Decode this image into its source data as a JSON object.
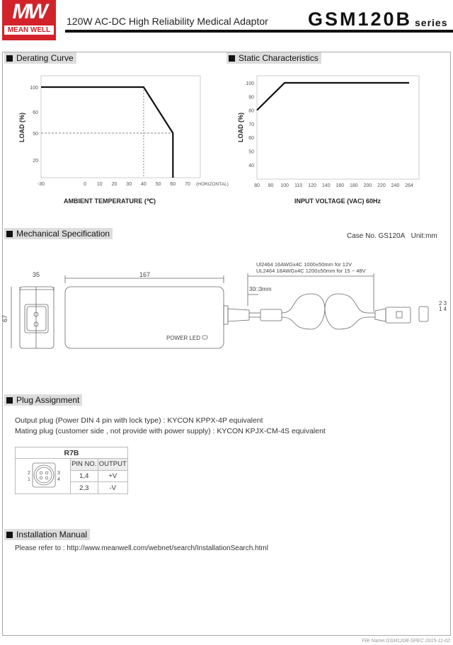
{
  "header": {
    "logo_top": "MW",
    "logo_text": "MEAN WELL",
    "subtitle": "120W AC-DC High Reliability Medical Adaptor",
    "model": "GSM120B",
    "series": "series"
  },
  "sections": {
    "derating": "Derating Curve",
    "static": "Static Characteristics",
    "mechanical": "Mechanical Specification",
    "plug": "Plug Assignment",
    "install": "Installation Manual"
  },
  "chart_data": [
    {
      "type": "line",
      "ylabel": "LOAD (%)",
      "xlabel": "AMBIENT TEMPERATURE (℃)",
      "x_extra_label": "(HORIZONTAL)",
      "x_ticks": [
        "-30",
        "0",
        "10",
        "20",
        "30",
        "40",
        "50",
        "60",
        "70"
      ],
      "y_ticks": [
        "100",
        "60",
        "50",
        "20"
      ],
      "series": [
        {
          "x": [
            -30,
            40,
            60,
            60
          ],
          "y": [
            100,
            100,
            50,
            0
          ]
        }
      ],
      "reference_lines": [
        {
          "x": 40
        },
        {
          "y": 50
        }
      ],
      "xlim": [
        -30,
        75
      ]
    },
    {
      "type": "line",
      "ylabel": "LOAD (%)",
      "xlabel": "INPUT VOLTAGE (VAC) 60Hz",
      "x_ticks": [
        "80",
        "90",
        "100",
        "110",
        "120",
        "140",
        "160",
        "180",
        "200",
        "220",
        "240",
        "264"
      ],
      "y_ticks": [
        "100",
        "90",
        "80",
        "70",
        "60",
        "50",
        "40"
      ],
      "series": [
        {
          "x": [
            80,
            100,
            264
          ],
          "y": [
            80,
            100,
            100
          ]
        }
      ],
      "ylim": [
        30,
        105
      ]
    }
  ],
  "mechanical": {
    "case": "Case No. GS120A",
    "unit": "Unit:mm",
    "dim_width": "35",
    "dim_length": "167",
    "dim_height": "67",
    "cable1": "Ul2464 16AWGx4C 1000±50mm for 12V",
    "cable2": "UL2464 18AWGx4C 1200±50mm for 15 ~ 48V",
    "dim_ferrite": "30□3mm",
    "led": "POWER LED",
    "pins_top": "2 3",
    "pins_bottom": "1 4"
  },
  "plug": {
    "line1": "Output plug (Power DIN 4 pin with lock type)  :  KYCON   KPPX-4P equivalent",
    "line2": "Mating plug (customer side , not provide with power supply) :  KYCON   KPJX-CM-4S equivalent",
    "table": {
      "title": "R7B",
      "headers": [
        "PIN NO.",
        "OUTPUT"
      ],
      "rows": [
        [
          "1,4",
          "+V"
        ],
        [
          "2,3",
          "-V"
        ]
      ],
      "pin_labels": [
        "2",
        "1",
        "3",
        "4"
      ]
    }
  },
  "install": {
    "text": "Please refer to : http://www.meanwell.com/webnet/search/InstallationSearch.html"
  },
  "footer": {
    "file": "File Name:GSM120B-SPEC   2015-11-02"
  }
}
